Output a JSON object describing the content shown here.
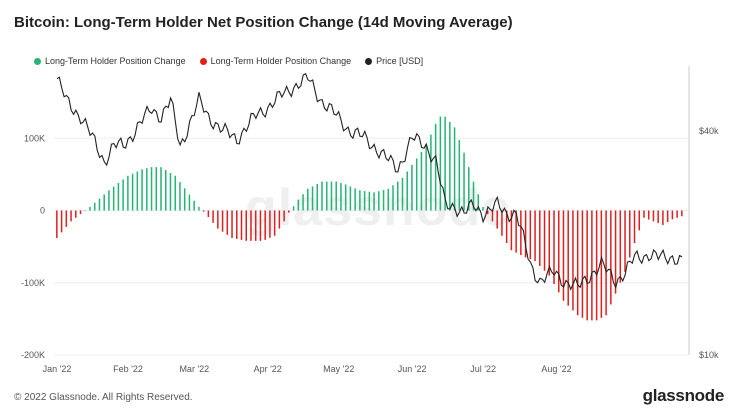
{
  "title": "Bitcoin: Long-Term Holder Net Position Change (14d Moving Average)",
  "watermark": "glassnode",
  "footer": {
    "copyright": "© 2022 Glassnode. All Rights Reserved.",
    "brand": "glassnode"
  },
  "colors": {
    "positive": "#22b573",
    "negative": "#e01e1e",
    "price": "#222222",
    "grid": "#eeeeee"
  },
  "chart_data": {
    "type": "bar",
    "title": "Bitcoin: Long-Term Holder Net Position Change (14d Moving Average)",
    "x_labels": [
      "Jan '22",
      "Feb '22",
      "Mar '22",
      "Apr '22",
      "May '22",
      "Jun '22",
      "Jul '22",
      "Aug '22"
    ],
    "y_left_ticks": [
      "100K",
      "0",
      "-100K",
      "-200K"
    ],
    "y_left_values": [
      100000,
      0,
      -100000,
      -200000
    ],
    "y_right_ticks": [
      "$40k",
      "$10k"
    ],
    "ylim": [
      -200000,
      200000
    ],
    "legend": [
      {
        "label": "Long-Term Holder Position Change",
        "color": "#22b573"
      },
      {
        "label": "Long-Term Holder Position Change",
        "color": "#e01e1e"
      },
      {
        "label": "Price [USD]",
        "color": "#222222"
      }
    ],
    "series": [
      {
        "name": "Long-Term Holder Position Change",
        "unit": "BTC",
        "points": [
          [
            0,
            -38000
          ],
          [
            6,
            -15000
          ],
          [
            14,
            5000
          ],
          [
            22,
            28000
          ],
          [
            30,
            48000
          ],
          [
            36,
            57000
          ],
          [
            40,
            60000
          ],
          [
            44,
            60000
          ],
          [
            50,
            48000
          ],
          [
            56,
            22000
          ],
          [
            60,
            5000
          ],
          [
            63,
            -5000
          ],
          [
            68,
            -25000
          ],
          [
            74,
            -38000
          ],
          [
            80,
            -42000
          ],
          [
            87,
            -42000
          ],
          [
            92,
            -35000
          ],
          [
            96,
            -15000
          ],
          [
            98,
            -3000
          ],
          [
            102,
            15000
          ],
          [
            106,
            30000
          ],
          [
            112,
            40000
          ],
          [
            118,
            40000
          ],
          [
            122,
            36000
          ],
          [
            128,
            28000
          ],
          [
            134,
            25000
          ],
          [
            140,
            30000
          ],
          [
            146,
            45000
          ],
          [
            152,
            72000
          ],
          [
            156,
            90000
          ],
          [
            160,
            120000
          ],
          [
            162,
            130000
          ],
          [
            164,
            130000
          ],
          [
            168,
            115000
          ],
          [
            172,
            80000
          ],
          [
            176,
            40000
          ],
          [
            180,
            5000
          ],
          [
            182,
            -5000
          ],
          [
            186,
            -25000
          ],
          [
            192,
            -55000
          ],
          [
            198,
            -65000
          ],
          [
            202,
            -70000
          ],
          [
            208,
            -90000
          ],
          [
            214,
            -125000
          ],
          [
            220,
            -145000
          ],
          [
            224,
            -152000
          ],
          [
            228,
            -152000
          ],
          [
            232,
            -145000
          ],
          [
            236,
            -115000
          ],
          [
            240,
            -85000
          ],
          [
            244,
            -45000
          ],
          [
            248,
            -10000
          ],
          [
            252,
            -15000
          ],
          [
            256,
            -20000
          ],
          [
            260,
            -12000
          ],
          [
            264,
            -8000
          ]
        ]
      },
      {
        "name": "Price [USD]",
        "points": [
          [
            0,
            47000
          ],
          [
            4,
            44000
          ],
          [
            10,
            42000
          ],
          [
            20,
            36000
          ],
          [
            24,
            38000
          ],
          [
            28,
            38000
          ],
          [
            40,
            43000
          ],
          [
            44,
            42000
          ],
          [
            48,
            44000
          ],
          [
            52,
            38000
          ],
          [
            60,
            44000
          ],
          [
            64,
            42000
          ],
          [
            70,
            40000
          ],
          [
            76,
            39000
          ],
          [
            84,
            42000
          ],
          [
            92,
            44000
          ],
          [
            100,
            46000
          ],
          [
            106,
            47000
          ],
          [
            112,
            44000
          ],
          [
            118,
            42000
          ],
          [
            124,
            40000
          ],
          [
            130,
            39000
          ],
          [
            134,
            38000
          ],
          [
            140,
            36000
          ],
          [
            144,
            35000
          ],
          [
            150,
            39000
          ],
          [
            156,
            38000
          ],
          [
            160,
            36000
          ],
          [
            164,
            30000
          ],
          [
            168,
            30000
          ],
          [
            172,
            29000
          ],
          [
            176,
            30000
          ],
          [
            180,
            29000
          ],
          [
            186,
            30000
          ],
          [
            190,
            29000
          ],
          [
            194,
            29000
          ],
          [
            200,
            22000
          ],
          [
            204,
            20000
          ],
          [
            210,
            21000
          ],
          [
            214,
            20000
          ],
          [
            220,
            19000
          ],
          [
            226,
            21000
          ],
          [
            230,
            22000
          ],
          [
            236,
            20000
          ],
          [
            240,
            21000
          ],
          [
            244,
            23000
          ],
          [
            250,
            23500
          ],
          [
            254,
            23000
          ],
          [
            260,
            23200
          ],
          [
            264,
            22500
          ]
        ]
      }
    ]
  }
}
